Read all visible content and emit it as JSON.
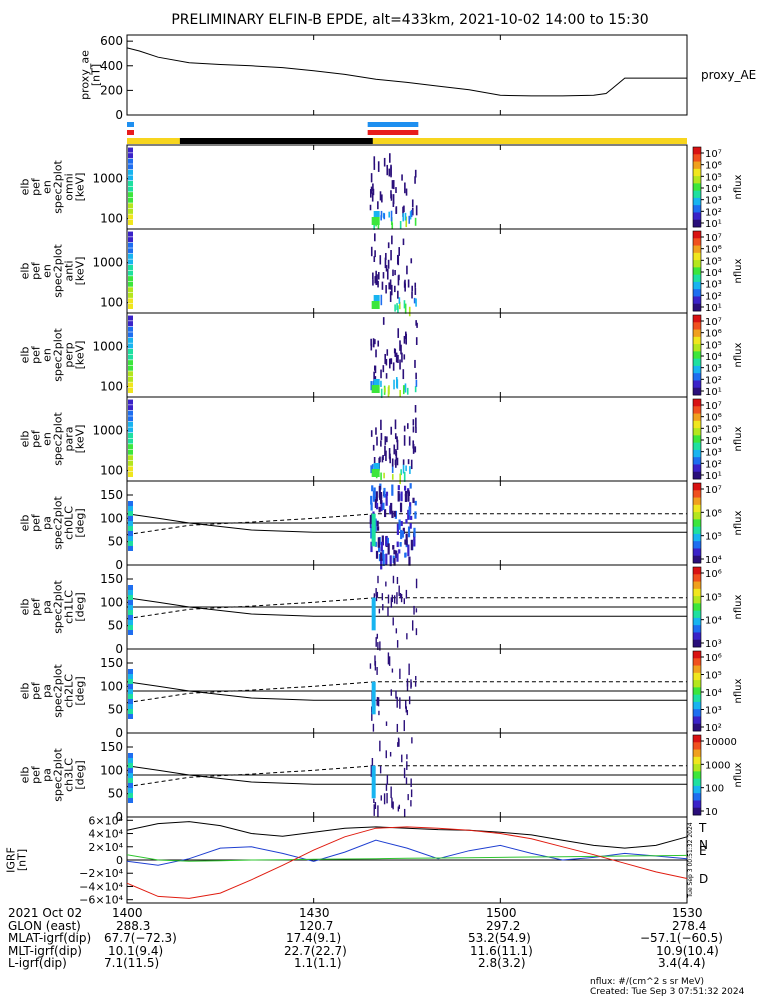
{
  "title": "PRELIMINARY ELFIN-B EPDE, alt=433km, 2021-10-02 14:00 to 15:30",
  "colors": {
    "orbit_yellow": "#f7d51e",
    "orbit_black": "#000000",
    "bar_blue": "#1e8ff0",
    "bar_red": "#e81c1c",
    "grf_black": "#000000",
    "grf_blue": "#1f3fd1",
    "grf_green": "#2ec52e",
    "grf_red": "#e01c10"
  },
  "x_ticks": [
    "1400",
    "1430",
    "1500",
    "1530"
  ],
  "proxy_ae": {
    "ylabel": "proxy_ae\n[nT]",
    "side_label": "proxy_AE",
    "yticks": [
      "600",
      "400",
      "200",
      "0"
    ]
  },
  "panels": [
    {
      "ylabel": "elb\npef\nen\nspec2plot\nomni\n[keV]",
      "yticks": [
        "1000",
        "100"
      ],
      "cb_ticks": [
        "10⁷",
        "10⁶",
        "10⁵",
        "10⁴",
        "10³",
        "10²",
        "10¹"
      ],
      "cb_label": "nflux"
    },
    {
      "ylabel": "elb\npef\nen\nspec2plot\nanti\n[keV]",
      "yticks": [
        "1000",
        "100"
      ],
      "cb_ticks": [
        "10⁷",
        "10⁶",
        "10⁵",
        "10⁴",
        "10³",
        "10²",
        "10¹"
      ],
      "cb_label": "nflux"
    },
    {
      "ylabel": "elb\npef\nen\nspec2plot\nperp\n[keV]",
      "yticks": [
        "1000",
        "100"
      ],
      "cb_ticks": [
        "10⁷",
        "10⁶",
        "10⁵",
        "10⁴",
        "10³",
        "10²",
        "10¹"
      ],
      "cb_label": "nflux"
    },
    {
      "ylabel": "elb\npef\nen\nspec2plot\npara\n[keV]",
      "yticks": [
        "1000",
        "100"
      ],
      "cb_ticks": [
        "10⁷",
        "10⁶",
        "10⁵",
        "10⁴",
        "10³",
        "10²",
        "10¹"
      ],
      "cb_label": "nflux"
    },
    {
      "ylabel": "elb\npef\npa\nspec2plot\nch0LC\n[deg]",
      "yticks": [
        "150",
        "100",
        "50",
        "0"
      ],
      "cb_ticks": [
        "10⁷",
        "10⁶",
        "10⁵",
        "10⁴"
      ],
      "cb_label": "nflux"
    },
    {
      "ylabel": "elb\npef\npa\nspec2plot\nch1LC\n[deg]",
      "yticks": [
        "150",
        "100",
        "50",
        "0"
      ],
      "cb_ticks": [
        "10⁶",
        "10⁵",
        "10⁴",
        "10³"
      ],
      "cb_label": "nflux"
    },
    {
      "ylabel": "elb\npef\npa\nspec2plot\nch2LC\n[deg]",
      "yticks": [
        "150",
        "100",
        "50",
        "0"
      ],
      "cb_ticks": [
        "10⁶",
        "10⁵",
        "10⁴",
        "10³",
        "10²"
      ],
      "cb_label": "nflux"
    },
    {
      "ylabel": "elb\npef\npa\nspec2plot\nch3LC\n[deg]",
      "yticks": [
        "150",
        "100",
        "50",
        "0"
      ],
      "cb_ticks": [
        "10000",
        "1000",
        "100",
        "10"
      ],
      "cb_label": "nflux"
    }
  ],
  "grf": {
    "ylabel": "IGRF\n[nT]",
    "yticks": [
      "6×10⁴",
      "4×10⁴",
      "2×10⁴",
      "0",
      "−2×10⁴",
      "−4×10⁴",
      "−6×10⁴"
    ],
    "legend": [
      "T",
      "N",
      "E",
      "D"
    ],
    "stamp": "Tue Sep  3 00:51:32 2024"
  },
  "bottom_table": {
    "rows": [
      [
        "2021 Oct 02",
        "1400",
        "1430",
        "1500",
        "1530"
      ],
      [
        "GLON (east)",
        "288.3",
        "120.7",
        "297.2",
        "278.4"
      ],
      [
        "MLAT-igrf(dip)",
        "67.7(−72.3)",
        "17.4(9.1)",
        "53.2(54.9)",
        "−57.1(−60.5)"
      ],
      [
        "MLT-igrf(dip)",
        "10.1(9.4)",
        "22.7(22.7)",
        "11.6(11.1)",
        "10.9(10.4)"
      ],
      [
        "L-igrf(dip)",
        "7.1(11.5)",
        "1.1(1.1)",
        "2.8(3.2)",
        "3.4(4.4)"
      ]
    ]
  },
  "footer": {
    "units": "nflux: #/(cm^2 s sr MeV)",
    "created": "Created: Tue Sep  3 07:51:32 2024"
  },
  "chart_data": {
    "type": "line",
    "title": "PRELIMINARY ELFIN-B EPDE, alt=433km, 2021-10-02 14:00 to 15:30",
    "x_unit": "UT minutes after 14:00",
    "xlim": [
      0,
      90
    ],
    "proxy_ae": {
      "ylim": [
        0,
        650
      ],
      "x": [
        0,
        2,
        5,
        10,
        15,
        20,
        25,
        30,
        35,
        40,
        45,
        50,
        55,
        60,
        65,
        70,
        75,
        77,
        78,
        80,
        90
      ],
      "values": [
        545,
        520,
        470,
        425,
        410,
        400,
        385,
        360,
        330,
        290,
        265,
        235,
        205,
        160,
        155,
        155,
        160,
        175,
        215,
        300,
        300
      ]
    },
    "spectrogram_activity_window": [
      39,
      46.5
    ],
    "pa_loss_cone": {
      "ylim": [
        0,
        180
      ],
      "x": [
        0,
        5,
        10,
        20,
        30,
        35,
        40,
        45,
        50,
        55,
        60,
        70,
        80,
        90
      ],
      "solid": [
        110,
        100,
        90,
        75,
        70,
        70,
        70,
        70,
        70,
        70,
        70,
        70,
        70,
        70
      ],
      "dashed": [
        65,
        75,
        85,
        92,
        100,
        105,
        110,
        110,
        110,
        110,
        110,
        110,
        110,
        110
      ],
      "horizontal": 90
    },
    "igrf": {
      "ylim": [
        -65000,
        65000
      ],
      "x": [
        0,
        5,
        10,
        15,
        20,
        25,
        30,
        35,
        40,
        45,
        50,
        55,
        60,
        65,
        70,
        75,
        80,
        85,
        90
      ],
      "series": [
        {
          "name": "T",
          "values": [
            45000,
            55000,
            58000,
            52000,
            40000,
            36000,
            42000,
            48000,
            50000,
            48000,
            46000,
            45000,
            42000,
            38000,
            30000,
            22000,
            18000,
            22000,
            35000
          ]
        },
        {
          "name": "N",
          "values": [
            -2000,
            -8000,
            2000,
            18000,
            20000,
            10000,
            -2000,
            12000,
            30000,
            18000,
            2000,
            14000,
            22000,
            10000,
            0,
            4000,
            10000,
            6000,
            2000
          ]
        },
        {
          "name": "E",
          "values": [
            8000,
            0,
            -2000,
            -1000,
            0,
            500,
            1000,
            1500,
            2000,
            2500,
            3000,
            3500,
            4000,
            4500,
            5000,
            5500,
            6000,
            6500,
            7000
          ]
        },
        {
          "name": "D",
          "values": [
            -35000,
            -55000,
            -58000,
            -50000,
            -30000,
            -8000,
            15000,
            35000,
            48000,
            50000,
            48000,
            45000,
            40000,
            32000,
            20000,
            8000,
            -5000,
            -18000,
            -28000
          ]
        }
      ]
    }
  }
}
